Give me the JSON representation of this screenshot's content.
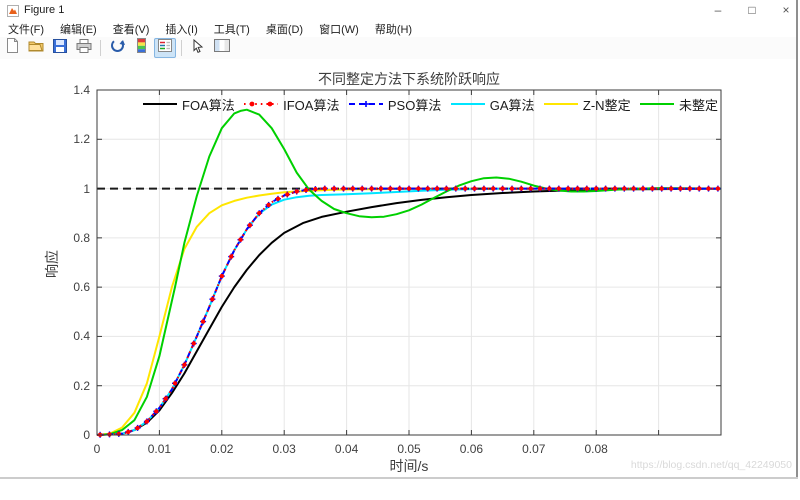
{
  "window": {
    "title": "Figure 1",
    "controls": {
      "minimize": "–",
      "maximize": "□",
      "close": "×"
    }
  },
  "menu": {
    "items": [
      "文件(F)",
      "编辑(E)",
      "查看(V)",
      "插入(I)",
      "工具(T)",
      "桌面(D)",
      "窗口(W)",
      "帮助(H)"
    ]
  },
  "toolbar": {
    "buttons": [
      {
        "name": "new-figure-icon",
        "active": false
      },
      {
        "name": "open-file-icon",
        "active": false
      },
      {
        "name": "save-figure-icon",
        "active": false
      },
      {
        "name": "print-figure-icon",
        "active": false
      },
      {
        "name": "separator",
        "active": false
      },
      {
        "name": "rotate-3d-icon",
        "active": false
      },
      {
        "name": "insert-colorbar-icon",
        "active": false
      },
      {
        "name": "insert-legend-icon",
        "active": true
      },
      {
        "name": "separator",
        "active": false
      },
      {
        "name": "edit-plot-icon",
        "active": false
      },
      {
        "name": "show-plot-tools-icon",
        "active": false
      }
    ]
  },
  "watermark": "https://blog.csdn.net/qq_42249050",
  "chart_data": {
    "type": "line",
    "title": "不同整定方法下系统阶跃响应",
    "xlabel": "时间/s",
    "ylabel": "响应",
    "xlim": [
      0,
      0.1
    ],
    "ylim": [
      0,
      1.4
    ],
    "grid": true,
    "legend_position": "top-row-inside",
    "x_ticks": [
      0,
      0.01,
      0.02,
      0.03,
      0.04,
      0.05,
      0.06,
      0.07,
      0.08,
      0.09,
      0.1
    ],
    "x_tick_labels": [
      "0",
      "0.01",
      "0.02",
      "0.03",
      "0.04",
      "0.05",
      "0.06",
      "0.07",
      "0.08",
      "",
      ""
    ],
    "y_ticks": [
      0,
      0.2,
      0.4,
      0.6,
      0.8,
      1,
      1.2,
      1.4
    ],
    "y_tick_labels": [
      "0",
      "0.2",
      "0.4",
      "0.6",
      "0.8",
      "1",
      "1.2",
      "1.4"
    ],
    "reference_line": {
      "y": 1.0,
      "color": "#1a1a1a",
      "style": "dashed"
    },
    "marker_interval": 0.0015,
    "series": [
      {
        "name": "FOA算法",
        "color": "#000000",
        "line": "solid",
        "marker": "none",
        "points": [
          [
            0,
            0
          ],
          [
            0.004,
            0.005
          ],
          [
            0.006,
            0.02
          ],
          [
            0.008,
            0.05
          ],
          [
            0.01,
            0.1
          ],
          [
            0.012,
            0.17
          ],
          [
            0.014,
            0.25
          ],
          [
            0.016,
            0.34
          ],
          [
            0.018,
            0.43
          ],
          [
            0.02,
            0.52
          ],
          [
            0.022,
            0.6
          ],
          [
            0.024,
            0.67
          ],
          [
            0.026,
            0.73
          ],
          [
            0.028,
            0.78
          ],
          [
            0.03,
            0.82
          ],
          [
            0.033,
            0.86
          ],
          [
            0.036,
            0.885
          ],
          [
            0.04,
            0.906
          ],
          [
            0.044,
            0.925
          ],
          [
            0.048,
            0.941
          ],
          [
            0.052,
            0.954
          ],
          [
            0.056,
            0.965
          ],
          [
            0.06,
            0.974
          ],
          [
            0.065,
            0.982
          ],
          [
            0.07,
            0.988
          ],
          [
            0.075,
            0.992
          ],
          [
            0.08,
            0.995
          ],
          [
            0.085,
            0.997
          ],
          [
            0.09,
            0.998
          ],
          [
            0.1,
            1
          ]
        ]
      },
      {
        "name": "IFOA算法",
        "color": "#ff0000",
        "line": "dashdot",
        "marker": "dot",
        "points": [
          [
            0,
            0
          ],
          [
            0.004,
            0.005
          ],
          [
            0.006,
            0.02
          ],
          [
            0.008,
            0.055
          ],
          [
            0.01,
            0.11
          ],
          [
            0.012,
            0.185
          ],
          [
            0.014,
            0.285
          ],
          [
            0.016,
            0.4
          ],
          [
            0.018,
            0.52
          ],
          [
            0.02,
            0.645
          ],
          [
            0.022,
            0.75
          ],
          [
            0.024,
            0.835
          ],
          [
            0.026,
            0.9
          ],
          [
            0.028,
            0.945
          ],
          [
            0.03,
            0.972
          ],
          [
            0.032,
            0.988
          ],
          [
            0.034,
            0.996
          ],
          [
            0.036,
            1
          ],
          [
            0.04,
            1
          ],
          [
            0.05,
            1
          ],
          [
            0.06,
            1
          ],
          [
            0.07,
            1
          ],
          [
            0.08,
            1
          ],
          [
            0.09,
            1
          ],
          [
            0.1,
            1
          ]
        ]
      },
      {
        "name": "PSO算法",
        "color": "#0000ff",
        "line": "dashed",
        "marker": "plus",
        "points": [
          [
            0,
            0
          ],
          [
            0.004,
            0.005
          ],
          [
            0.006,
            0.02
          ],
          [
            0.008,
            0.055
          ],
          [
            0.01,
            0.11
          ],
          [
            0.012,
            0.185
          ],
          [
            0.014,
            0.285
          ],
          [
            0.016,
            0.4
          ],
          [
            0.018,
            0.52
          ],
          [
            0.02,
            0.645
          ],
          [
            0.022,
            0.75
          ],
          [
            0.024,
            0.835
          ],
          [
            0.026,
            0.9
          ],
          [
            0.028,
            0.945
          ],
          [
            0.03,
            0.972
          ],
          [
            0.032,
            0.988
          ],
          [
            0.034,
            0.996
          ],
          [
            0.036,
            1
          ],
          [
            0.04,
            1
          ],
          [
            0.05,
            1
          ],
          [
            0.06,
            1
          ],
          [
            0.07,
            1
          ],
          [
            0.08,
            1
          ],
          [
            0.09,
            1
          ],
          [
            0.1,
            1
          ]
        ]
      },
      {
        "name": "GA算法",
        "color": "#00e5ff",
        "line": "solid",
        "marker": "none",
        "points": [
          [
            0,
            0
          ],
          [
            0.004,
            0.005
          ],
          [
            0.006,
            0.02
          ],
          [
            0.008,
            0.055
          ],
          [
            0.01,
            0.11
          ],
          [
            0.012,
            0.185
          ],
          [
            0.014,
            0.285
          ],
          [
            0.016,
            0.4
          ],
          [
            0.018,
            0.52
          ],
          [
            0.02,
            0.645
          ],
          [
            0.022,
            0.75
          ],
          [
            0.024,
            0.835
          ],
          [
            0.026,
            0.898
          ],
          [
            0.028,
            0.935
          ],
          [
            0.03,
            0.955
          ],
          [
            0.032,
            0.965
          ],
          [
            0.034,
            0.971
          ],
          [
            0.036,
            0.974
          ],
          [
            0.04,
            0.977
          ],
          [
            0.044,
            0.981
          ],
          [
            0.048,
            0.986
          ],
          [
            0.052,
            0.991
          ],
          [
            0.056,
            0.995
          ],
          [
            0.06,
            0.998
          ],
          [
            0.065,
            1
          ],
          [
            0.07,
            1
          ],
          [
            0.08,
            1
          ],
          [
            0.09,
            1
          ],
          [
            0.1,
            1
          ]
        ]
      },
      {
        "name": "Z-N整定",
        "color": "#ffe600",
        "line": "solid",
        "marker": "none",
        "points": [
          [
            0,
            0
          ],
          [
            0.002,
            0.005
          ],
          [
            0.004,
            0.03
          ],
          [
            0.006,
            0.09
          ],
          [
            0.008,
            0.21
          ],
          [
            0.01,
            0.4
          ],
          [
            0.012,
            0.6
          ],
          [
            0.014,
            0.755
          ],
          [
            0.016,
            0.845
          ],
          [
            0.018,
            0.9
          ],
          [
            0.02,
            0.932
          ],
          [
            0.022,
            0.95
          ],
          [
            0.024,
            0.963
          ],
          [
            0.026,
            0.972
          ],
          [
            0.028,
            0.979
          ],
          [
            0.03,
            0.985
          ],
          [
            0.034,
            0.991
          ],
          [
            0.038,
            0.995
          ],
          [
            0.042,
            0.997
          ],
          [
            0.046,
            0.998
          ],
          [
            0.05,
            0.999
          ],
          [
            0.06,
            1
          ],
          [
            0.07,
            1
          ],
          [
            0.08,
            1
          ],
          [
            0.09,
            1
          ],
          [
            0.1,
            1
          ]
        ]
      },
      {
        "name": "未整定",
        "color": "#00d000",
        "line": "solid",
        "marker": "none",
        "points": [
          [
            0,
            0
          ],
          [
            0.002,
            0.003
          ],
          [
            0.004,
            0.02
          ],
          [
            0.006,
            0.06
          ],
          [
            0.008,
            0.155
          ],
          [
            0.01,
            0.32
          ],
          [
            0.0125,
            0.6
          ],
          [
            0.014,
            0.78
          ],
          [
            0.016,
            0.97
          ],
          [
            0.018,
            1.13
          ],
          [
            0.02,
            1.245
          ],
          [
            0.022,
            1.305
          ],
          [
            0.023,
            1.315
          ],
          [
            0.024,
            1.32
          ],
          [
            0.026,
            1.3
          ],
          [
            0.028,
            1.245
          ],
          [
            0.03,
            1.16
          ],
          [
            0.032,
            1.065
          ],
          [
            0.034,
            0.995
          ],
          [
            0.036,
            0.95
          ],
          [
            0.038,
            0.917
          ],
          [
            0.04,
            0.9
          ],
          [
            0.042,
            0.888
          ],
          [
            0.044,
            0.884
          ],
          [
            0.046,
            0.886
          ],
          [
            0.048,
            0.896
          ],
          [
            0.05,
            0.912
          ],
          [
            0.052,
            0.935
          ],
          [
            0.054,
            0.962
          ],
          [
            0.056,
            0.988
          ],
          [
            0.058,
            1.012
          ],
          [
            0.06,
            1.03
          ],
          [
            0.062,
            1.042
          ],
          [
            0.064,
            1.045
          ],
          [
            0.066,
            1.04
          ],
          [
            0.068,
            1.028
          ],
          [
            0.07,
            1.012
          ],
          [
            0.072,
            1
          ],
          [
            0.074,
            0.992
          ],
          [
            0.076,
            0.988
          ],
          [
            0.078,
            0.988
          ],
          [
            0.08,
            0.99
          ],
          [
            0.083,
            0.995
          ],
          [
            0.086,
            0.999
          ],
          [
            0.09,
            1.002
          ],
          [
            0.094,
            1.001
          ],
          [
            0.1,
            1
          ]
        ]
      }
    ]
  }
}
